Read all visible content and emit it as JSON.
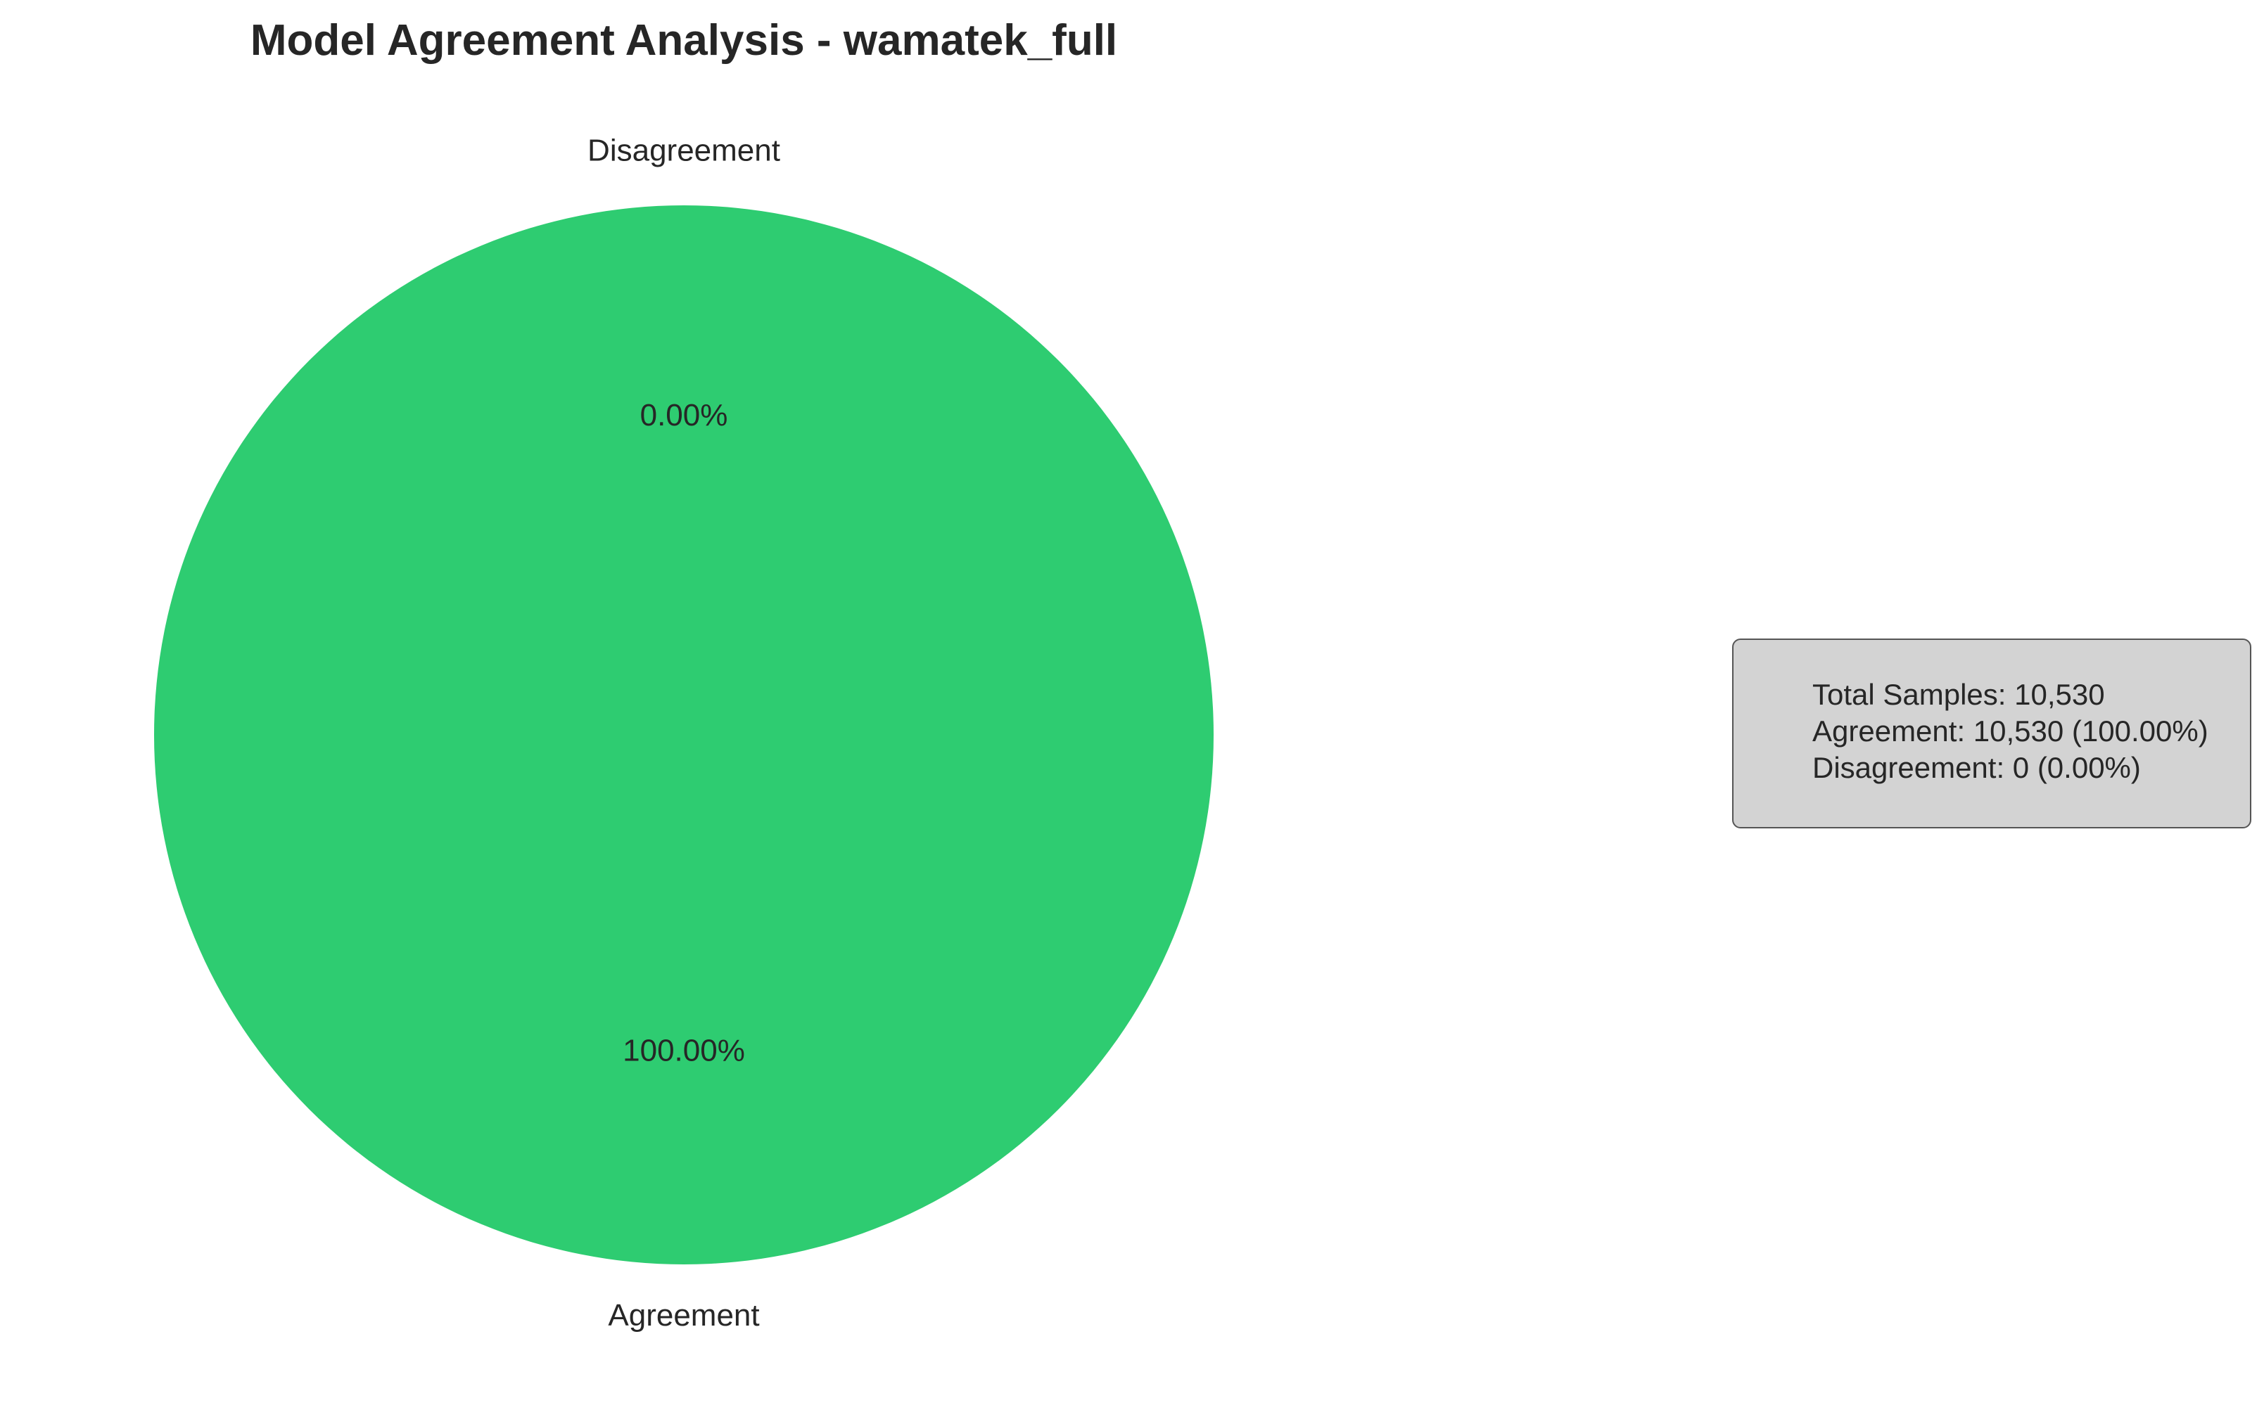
{
  "chart_data": {
    "type": "pie",
    "title": "Model Agreement Analysis - wamatek_full",
    "slices": [
      {
        "label": "Agreement",
        "value": 10530,
        "percent_label": "100.00%",
        "color": "#2ecc71"
      },
      {
        "label": "Disagreement",
        "value": 0,
        "percent_label": "0.00%",
        "color": "#e74c3c"
      }
    ],
    "legend": "none"
  },
  "stats_box": {
    "lines": [
      "Total Samples: 10,530",
      "Agreement: 10,530 (100.00%)",
      "Disagreement: 0 (0.00%)"
    ]
  }
}
